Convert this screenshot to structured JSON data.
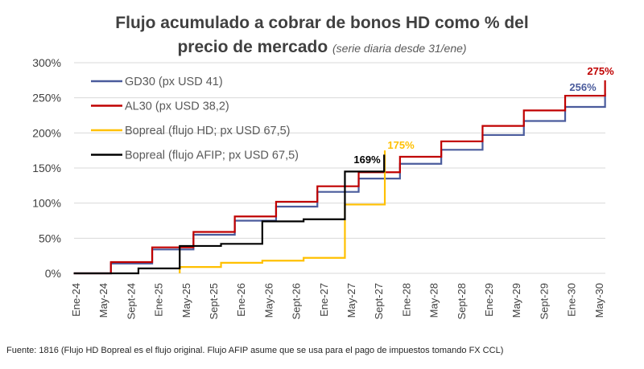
{
  "chart_data": {
    "type": "line",
    "title": "Flujo acumulado a cobrar de bonos HD como % del precio de mercado",
    "subtitle": "(serie diaria desde 31/ene)",
    "xlabel": "",
    "ylabel": "",
    "x_unit": "months since Ene-24",
    "xlim": [
      -0.4,
      77
    ],
    "ylim": [
      0,
      300
    ],
    "yticks": [
      0,
      50,
      100,
      150,
      200,
      250,
      300
    ],
    "ytick_labels": [
      "0%",
      "50%",
      "100%",
      "150%",
      "200%",
      "250%",
      "300%"
    ],
    "xtick_labels": [
      "Ene-24",
      "May-24",
      "Sept-24",
      "Ene-25",
      "May-25",
      "Sept-25",
      "Ene-26",
      "May-26",
      "Sept-26",
      "Ene-27",
      "May-27",
      "Sept-27",
      "Ene-28",
      "May-28",
      "Sept-28",
      "Ene-29",
      "May-29",
      "Sept-29",
      "Ene-30",
      "May-30"
    ],
    "grid": true,
    "legend_position": "top-left",
    "series": [
      {
        "name": "GD30 (px USD 41)",
        "color": "#4a5b9c",
        "end_x": 76.8,
        "end_label": "256%",
        "steps": [
          [
            -0.4,
            0
          ],
          [
            5,
            14
          ],
          [
            11,
            34
          ],
          [
            17,
            55
          ],
          [
            23,
            75
          ],
          [
            29,
            95
          ],
          [
            35,
            116
          ],
          [
            41,
            135
          ],
          [
            47,
            156
          ],
          [
            53,
            176
          ],
          [
            59,
            197
          ],
          [
            65,
            217
          ],
          [
            71,
            237
          ],
          [
            76.8,
            256
          ]
        ]
      },
      {
        "name": "AL30 (px USD 38,2)",
        "color": "#c00000",
        "end_x": 76.8,
        "end_label": "275%",
        "steps": [
          [
            -0.4,
            0
          ],
          [
            5,
            16
          ],
          [
            11,
            37
          ],
          [
            17,
            59
          ],
          [
            23,
            81
          ],
          [
            29,
            102
          ],
          [
            35,
            124
          ],
          [
            41,
            144
          ],
          [
            47,
            166
          ],
          [
            53,
            188
          ],
          [
            59,
            210
          ],
          [
            65,
            232
          ],
          [
            71,
            253
          ],
          [
            76.8,
            275
          ]
        ]
      },
      {
        "name": "Bopreal (flujo HD; px USD 67,5)",
        "color": "#ffc000",
        "end_x": 44.8,
        "end_label": "175%",
        "steps": [
          [
            15,
            0
          ],
          [
            15,
            9
          ],
          [
            21,
            15
          ],
          [
            27,
            18
          ],
          [
            33,
            22
          ],
          [
            39,
            98
          ],
          [
            44.8,
            175
          ]
        ]
      },
      {
        "name": "Bopreal (flujo AFIP; px USD 67,5)",
        "color": "#000000",
        "end_x": 44.7,
        "end_label": "169%",
        "steps": [
          [
            -0.4,
            0
          ],
          [
            9,
            7
          ],
          [
            15,
            39
          ],
          [
            21,
            42
          ],
          [
            27,
            74
          ],
          [
            33,
            77
          ],
          [
            39,
            145
          ],
          [
            44.7,
            169
          ]
        ]
      }
    ]
  },
  "footnote": "Fuente: 1816 (Flujo HD Bopreal es el flujo original. Flujo AFIP asume que se usa para el pago de impuestos tomando FX CCL)"
}
